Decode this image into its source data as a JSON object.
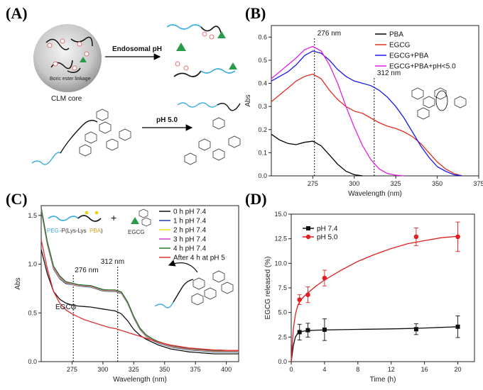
{
  "panels": {
    "A": {
      "label": "(A)",
      "core_label": "CLM core",
      "arrow1_label": "Endosomal pH",
      "arrow2_label": "pH 5.0",
      "bond_label": "Boric ester linkage"
    },
    "B": {
      "label": "(B)"
    },
    "C": {
      "label": "(C)",
      "polymer_label_peg": "PEG",
      "polymer_label_mid": "-P(Lys-Lys",
      "polymer_label_pba": "PBA",
      "polymer_label_end": ")",
      "plus": "+",
      "egcg_label": "EGCG",
      "peak_label": "EGCG"
    },
    "D": {
      "label": "(D)"
    }
  },
  "colors": {
    "pba": "#000000",
    "egcg": "#e03020",
    "egcg_pba": "#1a1ae6",
    "egcg_pba_acid": "#e020e0",
    "c_0h": "#111111",
    "c_1h": "#1e3ca8",
    "c_2h": "#f0e020",
    "c_3h": "#d040d0",
    "c_4h": "#2a7a2a",
    "c_after": "#e03030",
    "d_74": "#111111",
    "d_50": "#e02020"
  },
  "chart_data": [
    {
      "id": "B",
      "type": "line",
      "xlabel": "Wavelength (nm)",
      "ylabel": "Abs",
      "xlim": [
        250,
        375
      ],
      "ylim": [
        0,
        0.65
      ],
      "xticks": [
        275,
        300,
        325,
        350,
        375
      ],
      "yticks": [
        0.0,
        0.1,
        0.2,
        0.3,
        0.4,
        0.5,
        0.6
      ],
      "legend_position": "top-right",
      "annotations": [
        {
          "text": "276 nm",
          "x": 276
        },
        {
          "text": "312 nm",
          "x": 312
        }
      ],
      "series": [
        {
          "name": "PBA",
          "color": "#000000",
          "x": [
            250,
            255,
            260,
            265,
            270,
            275,
            280,
            285,
            290,
            295,
            300,
            305
          ],
          "y": [
            0.18,
            0.155,
            0.14,
            0.135,
            0.145,
            0.15,
            0.13,
            0.09,
            0.05,
            0.02,
            0.005,
            0.0
          ]
        },
        {
          "name": "EGCG",
          "color": "#e03020",
          "x": [
            250,
            255,
            260,
            265,
            270,
            275,
            280,
            285,
            290,
            295,
            300,
            305,
            310,
            315,
            320,
            325,
            330,
            335,
            340,
            345,
            350,
            355,
            360,
            365
          ],
          "y": [
            0.32,
            0.35,
            0.38,
            0.41,
            0.43,
            0.44,
            0.42,
            0.37,
            0.33,
            0.3,
            0.28,
            0.27,
            0.25,
            0.23,
            0.215,
            0.205,
            0.19,
            0.17,
            0.14,
            0.1,
            0.06,
            0.03,
            0.01,
            0.0
          ]
        },
        {
          "name": "EGCG+PBA",
          "color": "#1a1ae6",
          "x": [
            250,
            255,
            260,
            265,
            270,
            275,
            280,
            285,
            290,
            295,
            300,
            305,
            310,
            315,
            320,
            325,
            330,
            335,
            340,
            345,
            350,
            355,
            360,
            365
          ],
          "y": [
            0.41,
            0.43,
            0.45,
            0.48,
            0.52,
            0.54,
            0.53,
            0.5,
            0.46,
            0.43,
            0.41,
            0.4,
            0.39,
            0.37,
            0.34,
            0.3,
            0.25,
            0.19,
            0.13,
            0.08,
            0.04,
            0.02,
            0.005,
            0.0
          ]
        },
        {
          "name": "EGCG+PBA+pH<5.0",
          "color": "#e020e0",
          "x": [
            250,
            255,
            260,
            265,
            270,
            275,
            280,
            285,
            290,
            295,
            300,
            305,
            310,
            315,
            320,
            325,
            330
          ],
          "y": [
            0.42,
            0.45,
            0.48,
            0.51,
            0.545,
            0.56,
            0.54,
            0.48,
            0.4,
            0.3,
            0.21,
            0.13,
            0.07,
            0.03,
            0.01,
            0.003,
            0.0
          ]
        }
      ]
    },
    {
      "id": "C",
      "type": "line",
      "xlabel": "Wavelength (nm)",
      "ylabel": "Abs",
      "xlim": [
        250,
        410
      ],
      "ylim": [
        0,
        1.6
      ],
      "xticks": [
        275,
        300,
        325,
        350,
        375,
        400
      ],
      "yticks": [
        0.0,
        0.5,
        1.0,
        1.5
      ],
      "legend_position": "top-right",
      "annotations": [
        {
          "text": "276 nm",
          "x": 276
        },
        {
          "text": "312 nm",
          "x": 312
        }
      ],
      "series": [
        {
          "name": "0 h pH 7.4",
          "color": "#111111",
          "x": [
            250,
            255,
            260,
            265,
            270,
            275,
            280,
            285,
            290,
            295,
            300,
            305,
            310,
            315,
            320,
            325,
            330,
            335,
            340,
            345,
            350,
            355,
            360,
            365,
            370,
            375,
            380,
            385,
            390,
            395,
            400,
            405,
            410
          ],
          "y": [
            1.15,
            0.9,
            0.72,
            0.64,
            0.6,
            0.58,
            0.57,
            0.565,
            0.56,
            0.55,
            0.54,
            0.53,
            0.52,
            0.49,
            0.42,
            0.33,
            0.27,
            0.23,
            0.2,
            0.17,
            0.15,
            0.13,
            0.12,
            0.11,
            0.1,
            0.095,
            0.09,
            0.085,
            0.08,
            0.08,
            0.08,
            0.08,
            0.08
          ]
        },
        {
          "name": "1 h pH 7.4",
          "color": "#1e3ca8",
          "x": [
            250,
            255,
            260,
            265,
            270,
            275,
            280,
            285,
            290,
            295,
            300,
            305,
            310,
            315,
            320,
            325,
            330,
            335,
            340,
            345,
            350,
            355,
            360,
            365,
            370,
            375,
            380,
            385,
            390,
            395,
            400,
            405,
            410
          ],
          "y": [
            1.55,
            1.2,
            0.95,
            0.85,
            0.8,
            0.79,
            0.775,
            0.77,
            0.765,
            0.745,
            0.725,
            0.72,
            0.72,
            0.7,
            0.6,
            0.45,
            0.33,
            0.26,
            0.22,
            0.19,
            0.17,
            0.15,
            0.14,
            0.13,
            0.12,
            0.115,
            0.11,
            0.105,
            0.1,
            0.1,
            0.1,
            0.1,
            0.1
          ]
        },
        {
          "name": "2 h pH 7.4",
          "color": "#f0e020",
          "x": [
            250,
            255,
            260,
            265,
            270,
            275,
            280,
            285,
            290,
            295,
            300,
            305,
            310,
            315,
            320,
            325,
            330,
            335,
            340,
            345,
            350,
            355,
            360,
            365,
            370,
            375,
            380,
            385,
            390,
            395,
            400,
            405,
            410
          ],
          "y": [
            1.56,
            1.21,
            0.96,
            0.86,
            0.81,
            0.795,
            0.78,
            0.775,
            0.77,
            0.75,
            0.73,
            0.725,
            0.725,
            0.705,
            0.605,
            0.455,
            0.335,
            0.265,
            0.225,
            0.195,
            0.175,
            0.155,
            0.145,
            0.135,
            0.125,
            0.12,
            0.115,
            0.11,
            0.105,
            0.105,
            0.105,
            0.105,
            0.105
          ]
        },
        {
          "name": "3 h pH 7.4",
          "color": "#d040d0",
          "x": [
            250,
            255,
            260,
            265,
            270,
            275,
            280,
            285,
            290,
            295,
            300,
            305,
            310,
            315,
            320,
            325,
            330,
            335,
            340,
            345,
            350,
            355,
            360,
            365,
            370,
            375,
            380,
            385,
            390,
            395,
            400,
            405,
            410
          ],
          "y": [
            1.57,
            1.22,
            0.97,
            0.87,
            0.815,
            0.8,
            0.785,
            0.78,
            0.775,
            0.755,
            0.735,
            0.73,
            0.73,
            0.71,
            0.61,
            0.46,
            0.34,
            0.27,
            0.23,
            0.2,
            0.18,
            0.16,
            0.15,
            0.14,
            0.13,
            0.125,
            0.12,
            0.115,
            0.11,
            0.11,
            0.11,
            0.11,
            0.11
          ]
        },
        {
          "name": "4 h pH 7.4",
          "color": "#2a7a2a",
          "x": [
            250,
            255,
            260,
            265,
            270,
            275,
            280,
            285,
            290,
            295,
            300,
            305,
            310,
            315,
            320,
            325,
            330,
            335,
            340,
            345,
            350,
            355,
            360,
            365,
            370,
            375,
            380,
            385,
            390,
            395,
            400,
            405,
            410
          ],
          "y": [
            1.58,
            1.23,
            0.98,
            0.88,
            0.82,
            0.805,
            0.79,
            0.785,
            0.78,
            0.76,
            0.74,
            0.735,
            0.735,
            0.715,
            0.615,
            0.465,
            0.345,
            0.275,
            0.235,
            0.205,
            0.185,
            0.165,
            0.155,
            0.145,
            0.135,
            0.13,
            0.125,
            0.12,
            0.115,
            0.115,
            0.115,
            0.115,
            0.115
          ]
        },
        {
          "name": "After 4 h at pH 5",
          "color": "#e03030",
          "x": [
            250,
            255,
            260,
            265,
            270,
            275,
            280,
            285,
            290,
            295,
            300,
            305,
            310,
            315,
            320,
            325,
            330,
            335,
            340,
            345,
            350,
            355,
            360,
            365,
            370,
            375,
            380,
            385,
            390,
            395,
            400,
            405,
            410
          ],
          "y": [
            1.25,
            0.95,
            0.72,
            0.6,
            0.53,
            0.49,
            0.46,
            0.43,
            0.41,
            0.39,
            0.37,
            0.35,
            0.34,
            0.32,
            0.3,
            0.28,
            0.26,
            0.24,
            0.22,
            0.2,
            0.185,
            0.17,
            0.16,
            0.15,
            0.14,
            0.135,
            0.13,
            0.125,
            0.12,
            0.12,
            0.115,
            0.115,
            0.115
          ]
        }
      ]
    },
    {
      "id": "D",
      "type": "scatter",
      "xlabel": "Time (h)",
      "ylabel": "EGCG released (%)",
      "xlim": [
        0,
        22
      ],
      "ylim": [
        0,
        15
      ],
      "xticks": [
        0,
        4,
        8,
        12,
        16,
        20
      ],
      "yticks": [
        0.0,
        2.5,
        5.0,
        7.5,
        10.0,
        12.5,
        15.0
      ],
      "legend_position": "top-left",
      "series": [
        {
          "name": "pH 7.4",
          "color": "#111111",
          "x": [
            1,
            2,
            4,
            15,
            20
          ],
          "y": [
            3.0,
            3.2,
            3.25,
            3.3,
            3.55
          ],
          "err": [
            0.8,
            0.7,
            1.1,
            0.55,
            1.1
          ],
          "fit_x": [
            0,
            0.25,
            0.5,
            0.75,
            1,
            1.5,
            2,
            3,
            4,
            6,
            8,
            10,
            12,
            14,
            16,
            18,
            20
          ],
          "fit_y": [
            0,
            1.6,
            2.5,
            2.85,
            3.0,
            3.1,
            3.15,
            3.2,
            3.22,
            3.25,
            3.28,
            3.3,
            3.33,
            3.37,
            3.42,
            3.48,
            3.55
          ]
        },
        {
          "name": "pH 5.0",
          "color": "#e02020",
          "x": [
            1,
            2,
            4,
            15,
            20
          ],
          "y": [
            6.3,
            6.8,
            8.5,
            12.7,
            12.7
          ],
          "err": [
            0.5,
            0.8,
            0.8,
            0.9,
            1.5
          ],
          "fit_x": [
            0,
            0.25,
            0.5,
            0.75,
            1,
            1.5,
            2,
            3,
            4,
            6,
            8,
            10,
            12,
            14,
            16,
            18,
            20
          ],
          "fit_y": [
            0,
            3.3,
            4.8,
            5.6,
            6.1,
            6.6,
            7.0,
            7.7,
            8.3,
            9.3,
            10.2,
            10.9,
            11.5,
            12.0,
            12.3,
            12.6,
            12.75
          ]
        }
      ]
    }
  ]
}
